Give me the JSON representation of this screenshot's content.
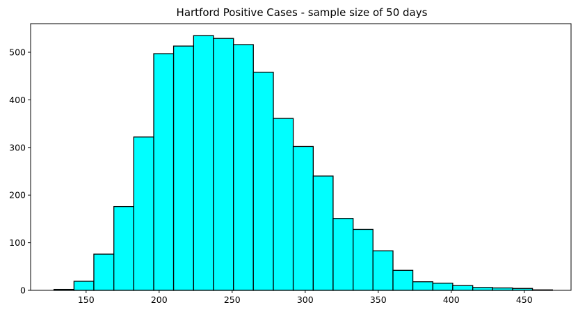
{
  "chart_data": {
    "type": "bar",
    "title": "Hartford Positive Cases - sample size of 50 days",
    "xlabel": "",
    "ylabel": "",
    "xlim": [
      112,
      482
    ],
    "ylim": [
      0,
      560
    ],
    "x_ticks": [
      150,
      200,
      250,
      300,
      350,
      400,
      450
    ],
    "y_ticks": [
      0,
      100,
      200,
      300,
      400,
      500
    ],
    "bin_edges": [
      128.0,
      141.7,
      155.3,
      169.0,
      182.6,
      196.3,
      209.9,
      223.6,
      237.2,
      250.9,
      264.5,
      278.2,
      291.8,
      305.5,
      319.1,
      332.8,
      346.4,
      360.1,
      373.7,
      387.4,
      401.0,
      414.7,
      428.3,
      442.0,
      455.6,
      469.3
    ],
    "values": [
      2,
      19,
      76,
      176,
      322,
      497,
      513,
      535,
      529,
      516,
      458,
      361,
      302,
      240,
      151,
      128,
      83,
      42,
      18,
      15,
      10,
      6,
      5,
      4,
      1
    ],
    "bar_color": "#00ffff",
    "edge_color": "#000000",
    "grid": false,
    "legend": "none"
  }
}
